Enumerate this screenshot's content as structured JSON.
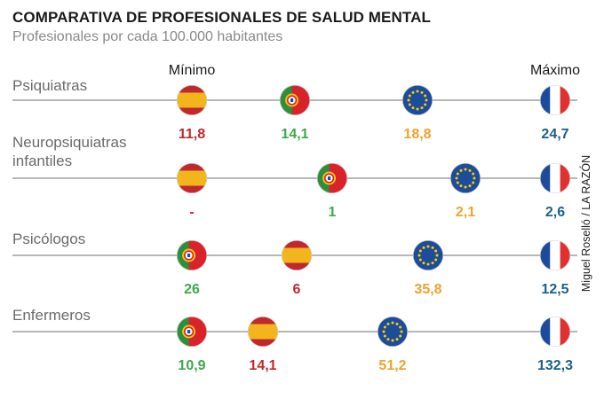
{
  "header": {
    "title": "COMPARATIVA DE PROFESIONALES DE SALUD MENTAL",
    "subtitle": "Profesionales por cada 100.000 habitantes"
  },
  "credit": "Miguel Roselló / LA RAZÓN",
  "colors": {
    "spain": "#c0282d",
    "portugal": "#3ea84a",
    "eu": "#f0a22b",
    "france": "#1d5f8a",
    "line": "#8c8c8c",
    "spain_yellow": "#f2b51c",
    "portugal_green": "#2d8e3c",
    "eu_blue": "#1e4c9a",
    "france_blue": "#1d4b9c",
    "france_red": "#e03030"
  },
  "chart_data": {
    "type": "table",
    "scale_labels": {
      "min": "Mínimo",
      "max": "Máximo"
    },
    "rows": [
      {
        "label": "Psiquiatras",
        "entries": [
          {
            "country": "spain",
            "value": "11,8"
          },
          {
            "country": "portugal",
            "value": "14,1"
          },
          {
            "country": "eu",
            "value": "18,8"
          },
          {
            "country": "france",
            "value": "24,7"
          }
        ]
      },
      {
        "label": "Neuropsiquiatras infantiles",
        "entries": [
          {
            "country": "spain",
            "value": "-"
          },
          {
            "country": "portugal",
            "value": "1"
          },
          {
            "country": "eu",
            "value": "2,1"
          },
          {
            "country": "france",
            "value": "2,6"
          }
        ]
      },
      {
        "label": "Psicólogos",
        "entries": [
          {
            "country": "portugal",
            "value": "26"
          },
          {
            "country": "spain",
            "value": "6"
          },
          {
            "country": "eu",
            "value": "35,8"
          },
          {
            "country": "france",
            "value": "12,5"
          }
        ]
      },
      {
        "label": "Enfermeros",
        "entries": [
          {
            "country": "portugal",
            "value": "10,9"
          },
          {
            "country": "spain",
            "value": "14,1"
          },
          {
            "country": "eu",
            "value": "51,2"
          },
          {
            "country": "france",
            "value": "132,3"
          }
        ]
      }
    ]
  }
}
